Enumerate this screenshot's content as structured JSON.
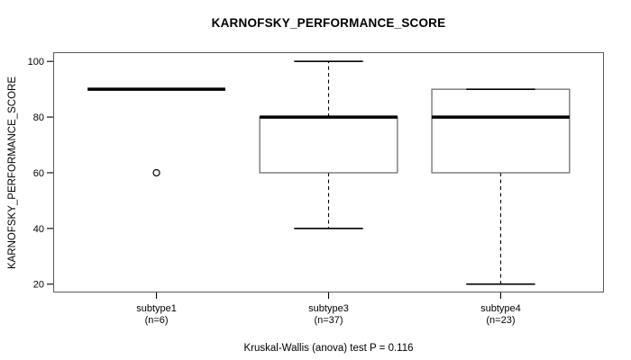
{
  "title": "KARNOFSKY_PERFORMANCE_SCORE",
  "y_axis_label": "KARNOFSKY_PERFORMANCE_SCORE",
  "footer_caption": "Kruskal-Wallis (anova) test P = 0.116",
  "colors": {
    "background": "#ffffff",
    "frame": "#5a5a5a",
    "box_outline": "#6e6e6e",
    "box_fill": "#ffffff",
    "line": "#000000",
    "text": "#000000"
  },
  "chart_data": {
    "type": "boxplot",
    "title": "KARNOFSKY_PERFORMANCE_SCORE",
    "xlabel": "",
    "ylabel": "KARNOFSKY_PERFORMANCE_SCORE",
    "footnote": "Kruskal-Wallis (anova) test P = 0.116",
    "statistical_test": "Kruskal-Wallis (anova)",
    "p_value": 0.116,
    "grid": false,
    "legend": "none",
    "ylim": [
      17,
      103.3
    ],
    "yticks": [
      20,
      40,
      60,
      80,
      100
    ],
    "xlim": [
      0.4,
      3.6
    ],
    "box_width": 0.8,
    "staple_width": 0.4,
    "groups": [
      {
        "label": "subtype1",
        "n": 6,
        "x": 1,
        "tick_label_lines": [
          "subtype1",
          "(n=6)"
        ],
        "median": 90,
        "q1": 90,
        "q3": 90,
        "whisker_low": 90,
        "whisker_high": 90,
        "outliers": [
          60
        ]
      },
      {
        "label": "subtype3",
        "n": 37,
        "x": 2,
        "tick_label_lines": [
          "subtype3",
          "(n=37)"
        ],
        "median": 80,
        "q1": 60,
        "q3": 80,
        "whisker_low": 40,
        "whisker_high": 100,
        "outliers": []
      },
      {
        "label": "subtype4",
        "n": 23,
        "x": 3,
        "tick_label_lines": [
          "subtype4",
          "(n=23)"
        ],
        "median": 80,
        "q1": 60,
        "q3": 90,
        "whisker_low": 20,
        "whisker_high": 90,
        "outliers": []
      }
    ]
  }
}
